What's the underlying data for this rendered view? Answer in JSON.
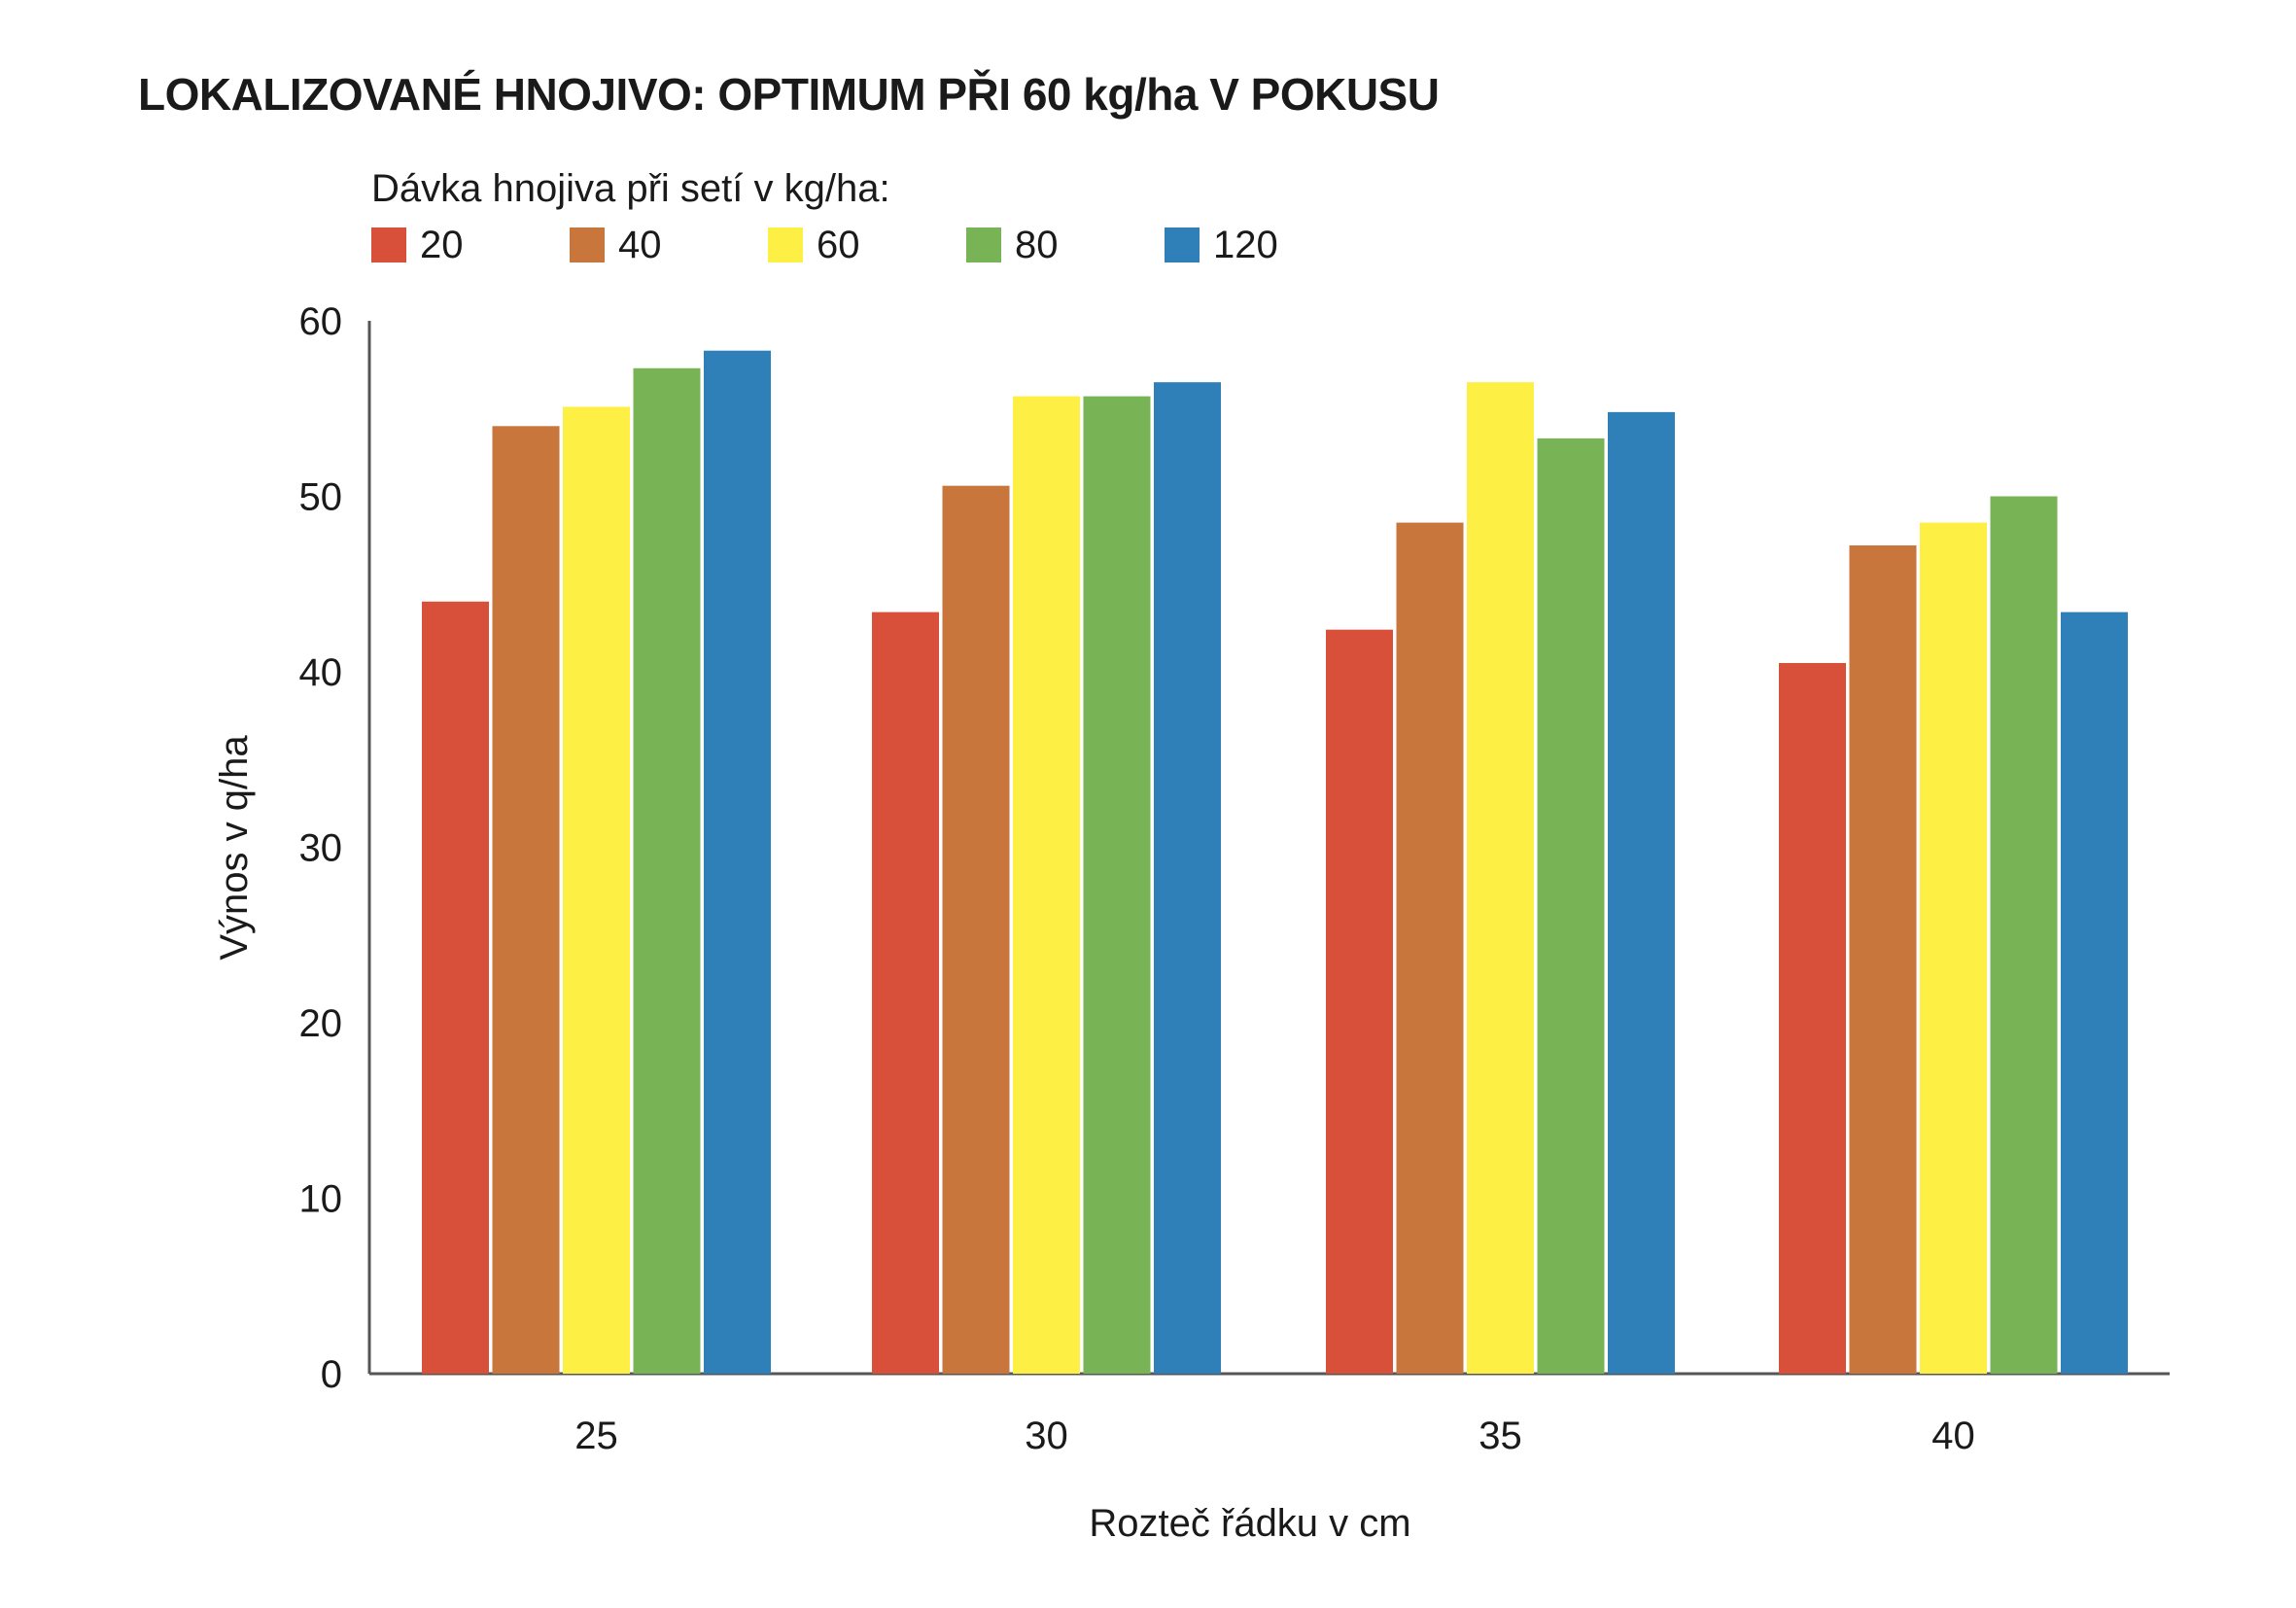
{
  "chart_data": {
    "type": "bar",
    "title": "LOKALIZOVANÉ HNOJIVO: OPTIMUM PŘI 60 kg/ha V POKUSU",
    "legend_title": "Dávka hnojiva při setí v kg/ha:",
    "xlabel": "Rozteč řádku v cm",
    "ylabel": "Výnos v q/ha",
    "categories": [
      "25",
      "30",
      "35",
      "40"
    ],
    "ylim": [
      0,
      60
    ],
    "yticks": [
      "0",
      "10",
      "20",
      "30",
      "40",
      "50",
      "60"
    ],
    "series": [
      {
        "name": "20",
        "color": "#d9503a",
        "values": [
          44.0,
          43.4,
          42.4,
          40.5
        ]
      },
      {
        "name": "40",
        "color": "#c8763c",
        "values": [
          54.0,
          50.6,
          48.5,
          47.2
        ]
      },
      {
        "name": "60",
        "color": "#fdef43",
        "values": [
          55.1,
          55.7,
          56.5,
          48.5
        ]
      },
      {
        "name": "80",
        "color": "#78b455",
        "values": [
          57.3,
          55.7,
          53.3,
          50.0
        ]
      },
      {
        "name": "120",
        "color": "#2f7fb8",
        "values": [
          58.3,
          56.5,
          54.8,
          43.4
        ]
      }
    ],
    "grid": false,
    "legend_position": "top-left"
  }
}
